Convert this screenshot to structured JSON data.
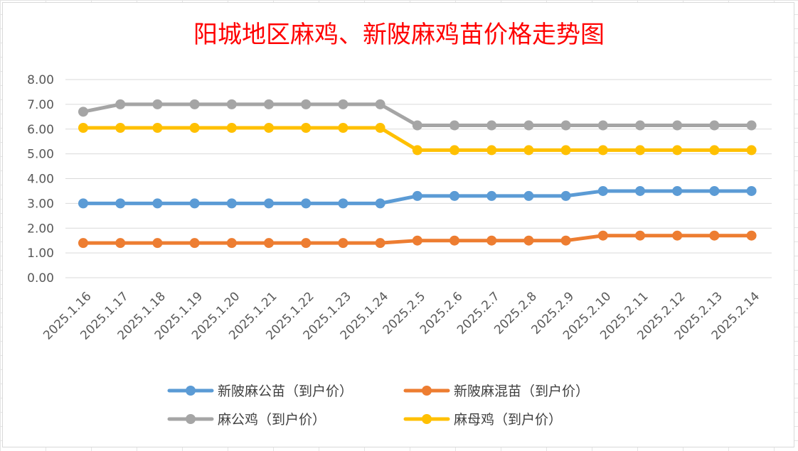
{
  "chart_data": {
    "type": "line",
    "title": "阳城地区麻鸡、新陂麻鸡苗价格走势图",
    "title_color": "#FF0000",
    "xlabel": "",
    "ylabel": "",
    "ylim": [
      0,
      8
    ],
    "y_ticks": [
      "0.00",
      "1.00",
      "2.00",
      "3.00",
      "4.00",
      "5.00",
      "6.00",
      "7.00",
      "8.00"
    ],
    "grid": true,
    "legend_position": "bottom",
    "categories": [
      "2025.1.16",
      "2025.1.17",
      "2025.1.18",
      "2025.1.19",
      "2025.1.20",
      "2025.1.21",
      "2025.1.22",
      "2025.1.23",
      "2025.1.24",
      "2025.2.5",
      "2025.2.6",
      "2025.2.7",
      "2025.2.8",
      "2025.2.9",
      "2025.2.10",
      "2025.2.11",
      "2025.2.12",
      "2025.2.13",
      "2025.2.14"
    ],
    "series": [
      {
        "name": "新陂麻公苗（到户价）",
        "color": "#5B9BD5",
        "values": [
          3.0,
          3.0,
          3.0,
          3.0,
          3.0,
          3.0,
          3.0,
          3.0,
          3.0,
          3.3,
          3.3,
          3.3,
          3.3,
          3.3,
          3.5,
          3.5,
          3.5,
          3.5,
          3.5
        ]
      },
      {
        "name": "新陂麻混苗（到户价）",
        "color": "#ED7D31",
        "values": [
          1.4,
          1.4,
          1.4,
          1.4,
          1.4,
          1.4,
          1.4,
          1.4,
          1.4,
          1.5,
          1.5,
          1.5,
          1.5,
          1.5,
          1.7,
          1.7,
          1.7,
          1.7,
          1.7
        ]
      },
      {
        "name": "麻公鸡（到户价）",
        "color": "#A5A5A5",
        "values": [
          6.7,
          7.0,
          7.0,
          7.0,
          7.0,
          7.0,
          7.0,
          7.0,
          7.0,
          6.15,
          6.15,
          6.15,
          6.15,
          6.15,
          6.15,
          6.15,
          6.15,
          6.15,
          6.15
        ]
      },
      {
        "name": "麻母鸡（到户价）",
        "color": "#FFC000",
        "values": [
          6.05,
          6.05,
          6.05,
          6.05,
          6.05,
          6.05,
          6.05,
          6.05,
          6.05,
          5.15,
          5.15,
          5.15,
          5.15,
          5.15,
          5.15,
          5.15,
          5.15,
          5.15,
          5.15
        ]
      }
    ]
  }
}
